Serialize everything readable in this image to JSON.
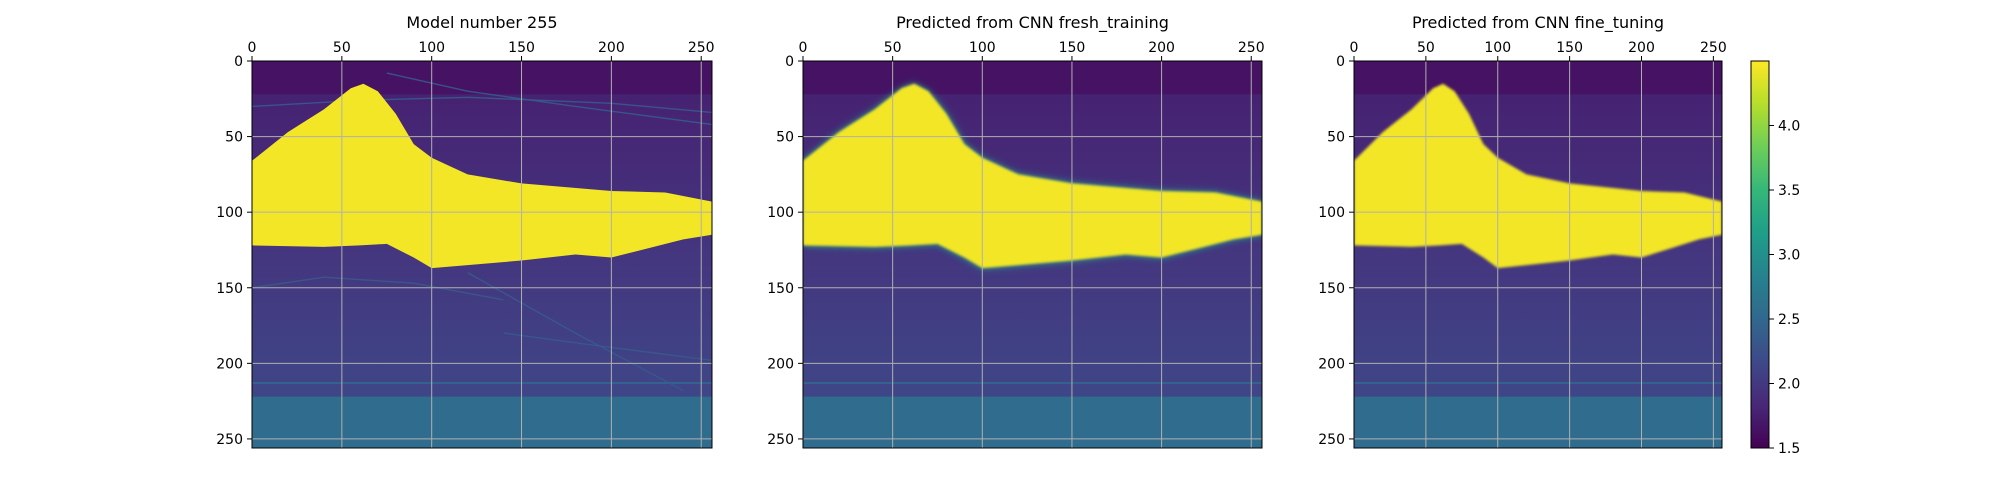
{
  "chart_data": [
    {
      "type": "heatmap",
      "title": "Model number 255",
      "source": "model",
      "xlim": [
        0,
        256
      ],
      "ylim": [
        256,
        0
      ],
      "xticks": [
        0,
        50,
        100,
        150,
        200,
        250
      ],
      "yticks": [
        0,
        50,
        100,
        150,
        200,
        250
      ],
      "grid": true,
      "xaxis_position": "top"
    },
    {
      "type": "heatmap",
      "title": "Predicted from CNN fresh_training",
      "source": "fresh",
      "xlim": [
        0,
        256
      ],
      "ylim": [
        256,
        0
      ],
      "xticks": [
        0,
        50,
        100,
        150,
        200,
        250
      ],
      "yticks": [
        0,
        50,
        100,
        150,
        200,
        250
      ],
      "grid": true,
      "xaxis_position": "top"
    },
    {
      "type": "heatmap",
      "title": "Predicted from CNN fine_tuning",
      "source": "fine",
      "xlim": [
        0,
        256
      ],
      "ylim": [
        256,
        0
      ],
      "xticks": [
        0,
        50,
        100,
        150,
        200,
        250
      ],
      "yticks": [
        0,
        50,
        100,
        150,
        200,
        250
      ],
      "grid": true,
      "xaxis_position": "top"
    }
  ],
  "colorbar": {
    "colormap": "viridis",
    "range": [
      1.5,
      4.5
    ],
    "ticks": [
      1.5,
      2.0,
      2.5,
      3.0,
      3.5,
      4.0
    ],
    "tick_labels": [
      "1.5",
      "2.0",
      "2.5",
      "3.0",
      "3.5",
      "4.0"
    ]
  },
  "field": {
    "background_top": 1.75,
    "background_bottom": 2.2,
    "bottom_layer_value": 2.55,
    "bottom_layer_depth": 222,
    "thin_layer_depth": 213,
    "salt_value": 4.45,
    "salt_top": [
      [
        0,
        66
      ],
      [
        20,
        47
      ],
      [
        40,
        32
      ],
      [
        55,
        18
      ],
      [
        62,
        15
      ],
      [
        70,
        20
      ],
      [
        80,
        35
      ],
      [
        90,
        55
      ],
      [
        100,
        64
      ],
      [
        120,
        75
      ],
      [
        150,
        81
      ],
      [
        200,
        86
      ],
      [
        230,
        87
      ],
      [
        256,
        93
      ]
    ],
    "salt_bottom": [
      [
        0,
        122
      ],
      [
        40,
        123
      ],
      [
        60,
        122
      ],
      [
        75,
        121
      ],
      [
        90,
        130
      ],
      [
        100,
        137
      ],
      [
        120,
        135
      ],
      [
        150,
        132
      ],
      [
        180,
        128
      ],
      [
        200,
        130
      ],
      [
        220,
        124
      ],
      [
        240,
        118
      ],
      [
        256,
        115
      ]
    ]
  }
}
